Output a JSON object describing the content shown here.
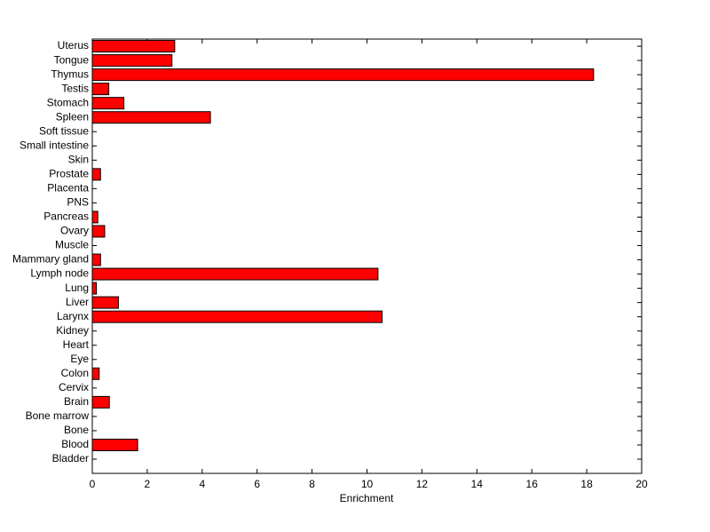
{
  "chart_data": {
    "type": "barh",
    "xlabel": "Enrichment",
    "categories": [
      "Bladder",
      "Blood",
      "Bone",
      "Bone marrow",
      "Brain",
      "Cervix",
      "Colon",
      "Eye",
      "Heart",
      "Kidney",
      "Larynx",
      "Liver",
      "Lung",
      "Lymph node",
      "Mammary gland",
      "Muscle",
      "Ovary",
      "Pancreas",
      "PNS",
      "Placenta",
      "Prostate",
      "Skin",
      "Small intestine",
      "Soft tissue",
      "Spleen",
      "Stomach",
      "Testis",
      "Thymus",
      "Tongue",
      "Uterus"
    ],
    "values": [
      0,
      1.65,
      0,
      0,
      0.62,
      0,
      0.25,
      0,
      0,
      0,
      10.55,
      0.95,
      0.15,
      10.4,
      0.3,
      0,
      0.45,
      0.2,
      0,
      0,
      0.3,
      0,
      0,
      0,
      4.3,
      1.15,
      0.6,
      18.25,
      2.9,
      3.0
    ],
    "color": "#ff0000",
    "xlim": [
      0,
      20
    ],
    "xticks": [
      0,
      2,
      4,
      6,
      8,
      10,
      12,
      14,
      16,
      18,
      20
    ]
  }
}
